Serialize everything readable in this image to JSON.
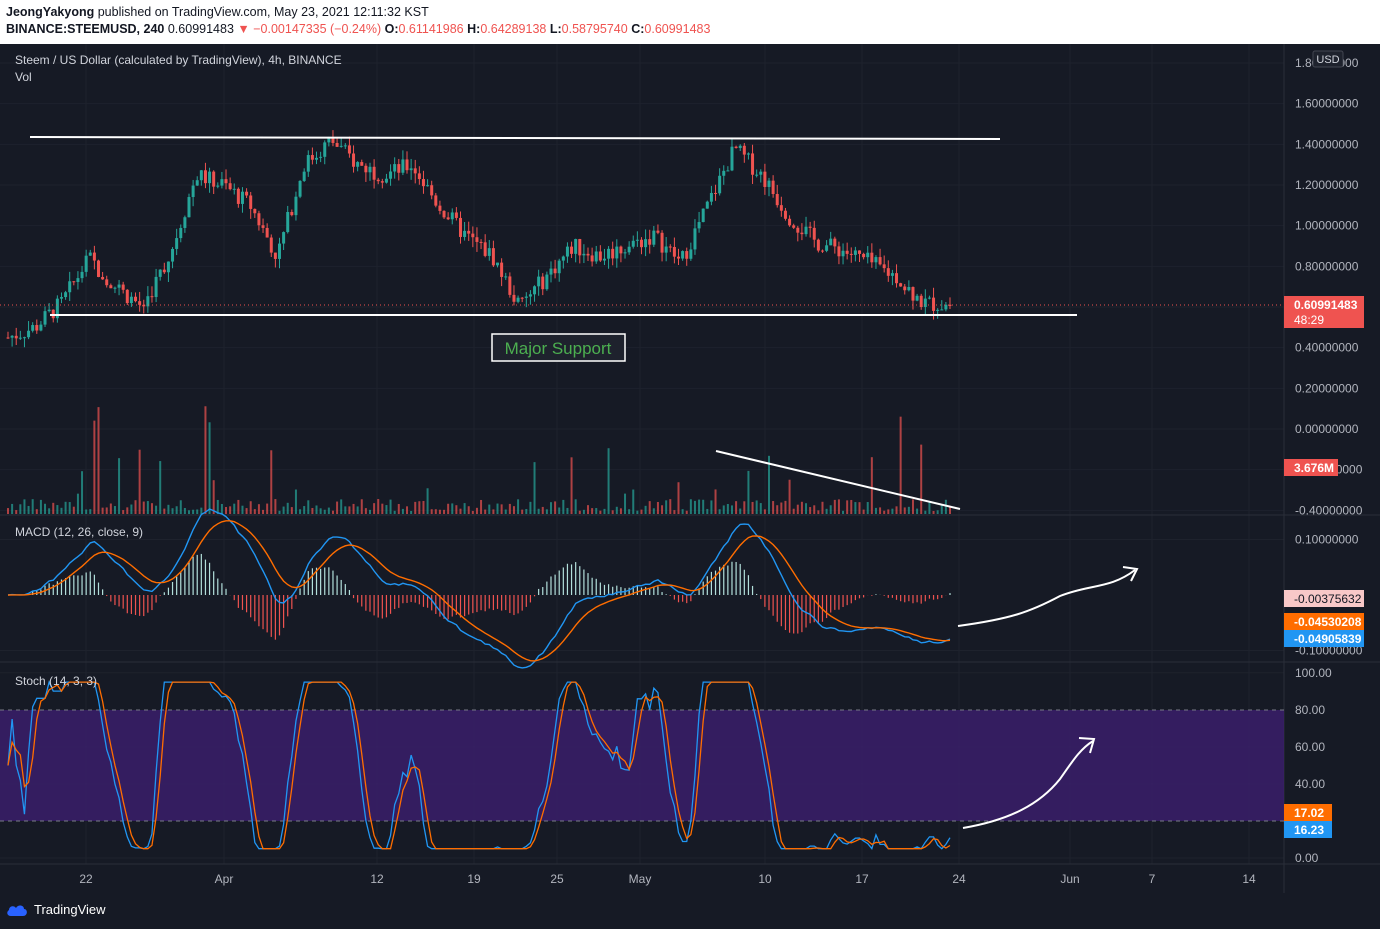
{
  "header": {
    "author": "JeongYakyong",
    "published_text": "published on TradingView.com, May 23, 2021 12:11:32 KST",
    "symbol_interval": "BINANCE:STEEMUSD, 240",
    "last": "0.60991483",
    "change": "▼ −0.00147335 (−0.24%)",
    "o_label": "O:",
    "o_val": "0.61141986",
    "h_label": "H:",
    "h_val": "0.64289138",
    "l_label": "L:",
    "l_val": "0.58795740",
    "c_label": "C:",
    "c_val": "0.60991483"
  },
  "main_pane": {
    "title": "Steem / US Dollar (calculated by TradingView), 4h, BINANCE",
    "vol_label": "Vol",
    "currency_button": "USD",
    "annotation": "Major Support"
  },
  "macd_pane": {
    "title": "MACD (12, 26, close, 9)"
  },
  "stoch_pane": {
    "title": "Stoch (14, 3, 3)"
  },
  "footer": {
    "brand": "TradingView"
  },
  "colors": {
    "up": "#26a69a",
    "down": "#ef5350",
    "macd": "#2196f3",
    "signal": "#ff6d00",
    "stoch_band": "#7e57c2",
    "line": "#ffffff"
  },
  "chart_data": [
    {
      "type": "candlestick",
      "title": "Steem / US Dollar (calculated by TradingView), 4h, BINANCE",
      "x_ticks": [
        "22",
        "Apr",
        "12",
        "19",
        "25",
        "May",
        "10",
        "17",
        "24",
        "Jun",
        "7",
        "14"
      ],
      "y_ticks": [
        "1.80000000",
        "1.60000000",
        "1.40000000",
        "1.20000000",
        "1.00000000",
        "0.80000000",
        "0.60000000",
        "0.40000000",
        "0.20000000",
        "0.00000000",
        "-0.20000000",
        "-0.40000000"
      ],
      "ylim": [
        -0.4,
        1.8
      ],
      "last_price_label": "0.60991483",
      "countdown_label": "48:29",
      "volume_label": "3.676M",
      "approx_close_path": [
        0.45,
        0.5,
        0.62,
        0.84,
        0.7,
        0.6,
        0.85,
        1.25,
        1.2,
        1.1,
        0.85,
        1.3,
        1.42,
        1.3,
        1.25,
        1.3,
        1.1,
        0.95,
        0.85,
        0.6,
        0.75,
        0.9,
        0.85,
        0.9,
        0.95,
        0.82,
        1.1,
        1.38,
        1.25,
        1.05,
        0.92,
        0.88,
        0.82,
        0.75,
        0.62,
        0.61
      ],
      "trendlines": [
        "resistance near 1.43",
        "support near 0.56"
      ]
    },
    {
      "type": "line",
      "title": "MACD (12, 26, close, 9)",
      "y_ticks": [
        "0.10000000",
        "-0.10000000"
      ],
      "series": [
        {
          "name": "MACD",
          "last": "-0.04905839"
        },
        {
          "name": "Signal",
          "last": "-0.04530208"
        },
        {
          "name": "Histogram",
          "last": "-0.00375632"
        }
      ]
    },
    {
      "type": "line",
      "title": "Stoch (14, 3, 3)",
      "y_ticks": [
        "100.00",
        "80.00",
        "60.00",
        "40.00",
        "20.00",
        "0.00"
      ],
      "ylim": [
        0,
        100
      ],
      "band": [
        20,
        80
      ],
      "series": [
        {
          "name": "%K",
          "last": "16.23"
        },
        {
          "name": "%D",
          "last": "17.02"
        }
      ]
    }
  ]
}
